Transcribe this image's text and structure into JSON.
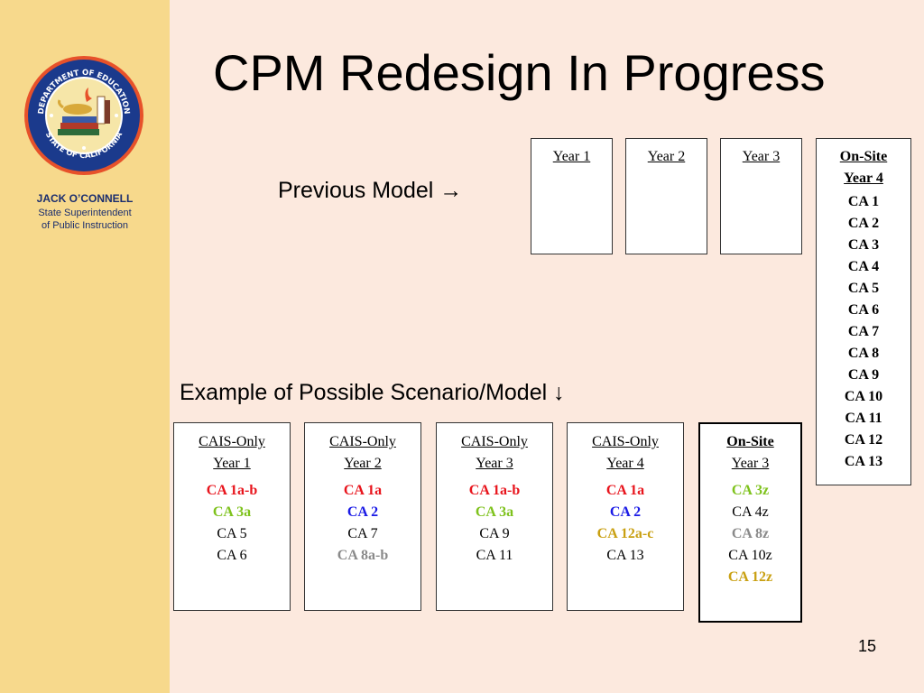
{
  "sidebar": {
    "name": "JACK O’CONNELL",
    "subtitle_line1": "State Superintendent",
    "subtitle_line2": "of Public Instruction",
    "seal_icon": "department-of-education-seal",
    "seal_text_top": "DEPARTMENT OF EDUCATION",
    "seal_text_bottom": "STATE OF CALIFORNIA"
  },
  "title": "CPM Redesign In Progress",
  "previous_model": {
    "caption": "Previous Model →",
    "boxes": [
      {
        "head": "Year 1",
        "items": []
      },
      {
        "head": "Year 2",
        "items": []
      },
      {
        "head": "Year 3",
        "items": []
      },
      {
        "head_line1": "On-Site",
        "head_line2": "Year 4",
        "items": [
          "CA 1",
          "CA 2",
          "CA 3",
          "CA 4",
          "CA 5",
          "CA 6",
          "CA 7",
          "CA 8",
          "CA 9",
          "CA 10",
          "CA 11",
          "CA 12",
          "CA 13"
        ]
      }
    ]
  },
  "example_model": {
    "caption": "Example of Possible Scenario/Model ↓",
    "boxes": [
      {
        "head_line1": "CAIS-Only",
        "head_line2": "Year 1",
        "items": [
          {
            "text": "CA 1a-b",
            "color": "red"
          },
          {
            "text": "CA 3a",
            "color": "green"
          },
          {
            "text": "CA 5",
            "color": "black"
          },
          {
            "text": "CA 6",
            "color": "black"
          }
        ]
      },
      {
        "head_line1": "CAIS-Only",
        "head_line2": "Year 2",
        "items": [
          {
            "text": "CA 1a",
            "color": "red"
          },
          {
            "text": "CA 2",
            "color": "blue"
          },
          {
            "text": "CA 7",
            "color": "black"
          },
          {
            "text": "CA 8a-b",
            "color": "gray"
          }
        ]
      },
      {
        "head_line1": "CAIS-Only",
        "head_line2": "Year 3",
        "items": [
          {
            "text": "CA 1a-b",
            "color": "red"
          },
          {
            "text": "CA 3a",
            "color": "green"
          },
          {
            "text": "CA 9",
            "color": "black"
          },
          {
            "text": "CA 11",
            "color": "black"
          }
        ]
      },
      {
        "head_line1": "CAIS-Only",
        "head_line2": "Year 4",
        "items": [
          {
            "text": "CA 1a",
            "color": "red"
          },
          {
            "text": "CA 2",
            "color": "blue"
          },
          {
            "text": "CA 12a-c",
            "color": "gold"
          },
          {
            "text": "CA 13",
            "color": "black"
          }
        ]
      },
      {
        "head_line1": "On-Site",
        "head_line2": "Year 3",
        "items": [
          {
            "text": "CA 3z",
            "color": "green"
          },
          {
            "text": "CA 4z",
            "color": "black"
          },
          {
            "text": "CA 8z",
            "color": "gray"
          },
          {
            "text": "CA 10z",
            "color": "black"
          },
          {
            "text": "CA 12z",
            "color": "gold"
          }
        ]
      }
    ]
  },
  "colors": {
    "red": "#e8141c",
    "green": "#7ec21c",
    "blue": "#1a1ae6",
    "gray": "#8a8a8a",
    "gold": "#c9a012",
    "black": "#000000",
    "sidebar_bg": "#f7d98c",
    "slide_bg": "#fce9de"
  },
  "page_number": "15"
}
